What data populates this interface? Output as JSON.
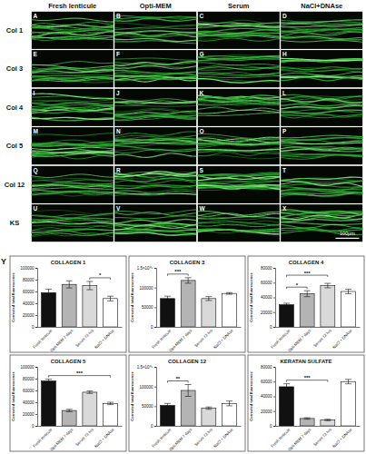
{
  "image_grid": {
    "columns": [
      "Fresh lenticule",
      "Opti-MEM",
      "Serum",
      "NaCl+DNAse"
    ],
    "rows": [
      "Col 1",
      "Col 3",
      "Col 4",
      "Col 5",
      "Col 12",
      "KS"
    ],
    "panels": [
      "A",
      "B",
      "C",
      "D",
      "E",
      "F",
      "G",
      "H",
      "I",
      "J",
      "K",
      "L",
      "M",
      "N",
      "O",
      "P",
      "Q",
      "R",
      "S",
      "T",
      "U",
      "V",
      "W",
      "X"
    ],
    "scale_bar": "100μm"
  },
  "chart_label": "Y",
  "chart_data": [
    {
      "type": "bar",
      "title": "COLLAGEN 1",
      "y_label": "Corrected total fluorescence",
      "categories": [
        "Fresh lenticule",
        "Opti-MEM 7 days",
        "Serum 72 hrs",
        "NaCl + DNAse"
      ],
      "values": [
        58000,
        72000,
        70000,
        48000
      ],
      "errors": [
        6000,
        6000,
        7000,
        4000
      ],
      "colors": [
        "#111111",
        "#b4b4b4",
        "#d9d9d9",
        "#ffffff"
      ],
      "ylim": [
        0,
        100000
      ],
      "yticks": [
        0,
        20000,
        40000,
        60000,
        80000,
        100000
      ],
      "annotations": [
        {
          "from": 2,
          "to": 3,
          "text": "*"
        }
      ]
    },
    {
      "type": "bar",
      "title": "COLLAGEN 3",
      "y_label": "Corrected total fluorescence",
      "categories": [
        "Fresh lenticule",
        "Opti-MEM 7 days",
        "Serum 72 hrs",
        "NaCl + DNAse"
      ],
      "values": [
        72000,
        118000,
        72000,
        85000
      ],
      "errors": [
        6000,
        7000,
        5000,
        2000
      ],
      "colors": [
        "#111111",
        "#b4b4b4",
        "#d9d9d9",
        "#ffffff"
      ],
      "ylim": [
        0,
        150000
      ],
      "yticks": [
        0,
        50000,
        100000,
        {
          "value": 150000,
          "label": "1.5×10⁰⁵"
        }
      ],
      "annotations": [
        {
          "from": 0,
          "to": 1,
          "text": "***"
        }
      ]
    },
    {
      "type": "bar",
      "title": "COLLAGEN 4",
      "y_label": "Corrected total fluorescence",
      "categories": [
        "Fresh lenticule",
        "Opti-MEM 7 days",
        "Serum 72 hrs",
        "NaCl + DNAse"
      ],
      "values": [
        30000,
        45000,
        56000,
        48000
      ],
      "errors": [
        2000,
        4000,
        3000,
        3000
      ],
      "colors": [
        "#111111",
        "#b4b4b4",
        "#d9d9d9",
        "#ffffff"
      ],
      "ylim": [
        0,
        80000
      ],
      "yticks": [
        0,
        20000,
        40000,
        60000,
        80000
      ],
      "annotations": [
        {
          "from": 0,
          "to": 1,
          "text": "*"
        },
        {
          "from": 0,
          "to": 2,
          "text": "***"
        }
      ]
    },
    {
      "type": "bar",
      "title": "COLLAGEN 5",
      "y_label": "Corrected total fluorescence",
      "categories": [
        "Fresh lenticule",
        "Opti-MEM 7 days",
        "Serum 72 hrs",
        "NaCl + DNAse"
      ],
      "values": [
        76000,
        26000,
        57000,
        38000
      ],
      "errors": [
        3000,
        2000,
        2000,
        2000
      ],
      "colors": [
        "#111111",
        "#b4b4b4",
        "#d9d9d9",
        "#ffffff"
      ],
      "ylim": [
        0,
        100000
      ],
      "yticks": [
        0,
        20000,
        40000,
        60000,
        80000,
        100000
      ],
      "annotations": [
        {
          "from": 0,
          "to": 3,
          "text": "***"
        }
      ]
    },
    {
      "type": "bar",
      "title": "COLLAGEN 12",
      "y_label": "Corrected total fluorescence",
      "categories": [
        "Fresh lenticule",
        "Opti-MEM 7 days",
        "Serum 72 hrs",
        "NaCl + DNAse"
      ],
      "values": [
        52000,
        90000,
        45000,
        57000
      ],
      "errors": [
        5000,
        15000,
        3000,
        6000
      ],
      "colors": [
        "#111111",
        "#b4b4b4",
        "#d9d9d9",
        "#ffffff"
      ],
      "ylim": [
        0,
        150000
      ],
      "yticks": [
        0,
        50000,
        100000,
        {
          "value": 150000,
          "label": "1.5×10⁰⁵"
        }
      ],
      "annotations": [
        {
          "from": 0,
          "to": 1,
          "text": "**"
        }
      ]
    },
    {
      "type": "bar",
      "title": "KERATAN SULFATE",
      "y_label": "Corrected total fluorescence",
      "categories": [
        "Fresh lenticule",
        "Opti-MEM 7 days",
        "Serum 72 hrs",
        "NaCl + DNAse"
      ],
      "values": [
        53000,
        10000,
        8000,
        60000
      ],
      "errors": [
        4000,
        1000,
        1000,
        3000
      ],
      "colors": [
        "#111111",
        "#b4b4b4",
        "#d9d9d9",
        "#ffffff"
      ],
      "ylim": [
        0,
        80000
      ],
      "yticks": [
        0,
        20000,
        40000,
        60000,
        80000
      ],
      "annotations": [
        {
          "from": 0,
          "to": 2,
          "text": "***"
        }
      ]
    }
  ]
}
